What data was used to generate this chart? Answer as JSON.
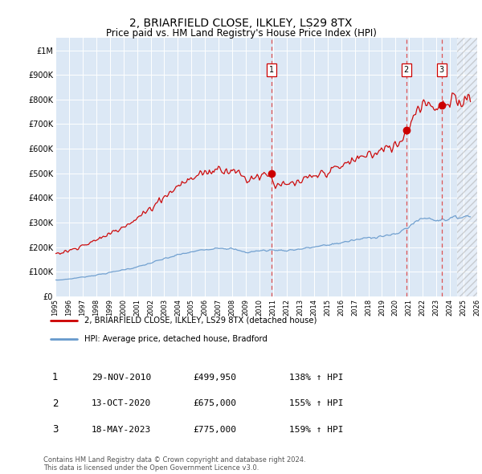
{
  "title": "2, BRIARFIELD CLOSE, ILKLEY, LS29 8TX",
  "subtitle": "Price paid vs. HM Land Registry's House Price Index (HPI)",
  "title_fontsize": 10,
  "subtitle_fontsize": 8.5,
  "fig_bg": "#ffffff",
  "plot_bg": "#dce8f5",
  "grid_color": "#ffffff",
  "ylim": [
    0,
    1050000
  ],
  "yticks": [
    0,
    100000,
    200000,
    300000,
    400000,
    500000,
    600000,
    700000,
    800000,
    900000,
    1000000
  ],
  "ytick_labels": [
    "£0",
    "£100K",
    "£200K",
    "£300K",
    "£400K",
    "£500K",
    "£600K",
    "£700K",
    "£800K",
    "£900K",
    "£1M"
  ],
  "red_color": "#cc0000",
  "blue_color": "#6699cc",
  "vline_color": "#dd4444",
  "legend_label_red": "2, BRIARFIELD CLOSE, ILKLEY, LS29 8TX (detached house)",
  "legend_label_blue": "HPI: Average price, detached house, Bradford",
  "table_entries": [
    {
      "num": "1",
      "date": "29-NOV-2010",
      "price": "£499,950",
      "hpi": "138% ↑ HPI"
    },
    {
      "num": "2",
      "date": "13-OCT-2020",
      "price": "£675,000",
      "hpi": "155% ↑ HPI"
    },
    {
      "num": "3",
      "date": "18-MAY-2023",
      "price": "£775,000",
      "hpi": "159% ↑ HPI"
    }
  ],
  "footer": "Contains HM Land Registry data © Crown copyright and database right 2024.\nThis data is licensed under the Open Government Licence v3.0.",
  "sale_dates": [
    2010.91,
    2020.79,
    2023.38
  ],
  "sale_prices": [
    499950,
    675000,
    775000
  ],
  "sale_labels": [
    "1",
    "2",
    "3"
  ],
  "xlim": [
    1995,
    2026
  ],
  "xticks": [
    1995,
    1996,
    1997,
    1998,
    1999,
    2000,
    2001,
    2002,
    2003,
    2004,
    2005,
    2006,
    2007,
    2008,
    2009,
    2010,
    2011,
    2012,
    2013,
    2014,
    2015,
    2016,
    2017,
    2018,
    2019,
    2020,
    2021,
    2022,
    2023,
    2024,
    2025,
    2026
  ],
  "hpi_base": {
    "years": [
      1995,
      1996,
      1997,
      1998,
      1999,
      2000,
      2001,
      2002,
      2003,
      2004,
      2005,
      2006,
      2007,
      2008,
      2009,
      2010,
      2011,
      2012,
      2013,
      2014,
      2015,
      2016,
      2017,
      2018,
      2019,
      2020,
      2021,
      2022,
      2023,
      2024,
      2025
    ],
    "values": [
      65000,
      70000,
      78000,
      86000,
      96000,
      108000,
      118000,
      135000,
      152000,
      168000,
      180000,
      190000,
      198000,
      192000,
      178000,
      185000,
      188000,
      186000,
      192000,
      200000,
      208000,
      218000,
      228000,
      238000,
      245000,
      250000,
      285000,
      320000,
      310000,
      315000,
      325000
    ]
  }
}
